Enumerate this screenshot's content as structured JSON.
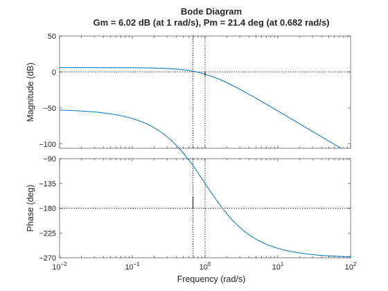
{
  "chart_data": {
    "type": "line",
    "title": "Bode Diagram",
    "subtitle": "Gm = 6.02 dB (at 1 rad/s),  Pm = 21.4 deg (at 0.682 rad/s)",
    "xlabel": "Frequency  (rad/s)",
    "xscale": "log",
    "xlim": [
      0.01,
      100
    ],
    "xticks": [
      0.01,
      0.1,
      1,
      10,
      100
    ],
    "grid": false,
    "transfer_function_poles": [
      1,
      1,
      1
    ],
    "gain_margin": {
      "value_db": 6.02,
      "frequency": 1
    },
    "phase_margin": {
      "value_deg": 21.4,
      "frequency": 0.682
    },
    "panels": [
      {
        "name": "magnitude",
        "ylabel": "Magnitude (dB)",
        "ylim": [
          -106,
          50
        ],
        "yticks": [
          50,
          0,
          -50,
          -100
        ],
        "reference_y": 0,
        "series": [
          {
            "color": "#0072BD",
            "gain": 2,
            "quantity": "magnitude_db"
          }
        ]
      },
      {
        "name": "phase",
        "ylabel": "Phase (deg)",
        "ylim": [
          -270,
          -90
        ],
        "yticks": [
          -90,
          -135,
          -180,
          -225,
          -270
        ],
        "reference_y": -180,
        "series": [
          {
            "color": "#0072BD",
            "gain": 2,
            "quantity": "phase_deg"
          }
        ]
      }
    ]
  }
}
